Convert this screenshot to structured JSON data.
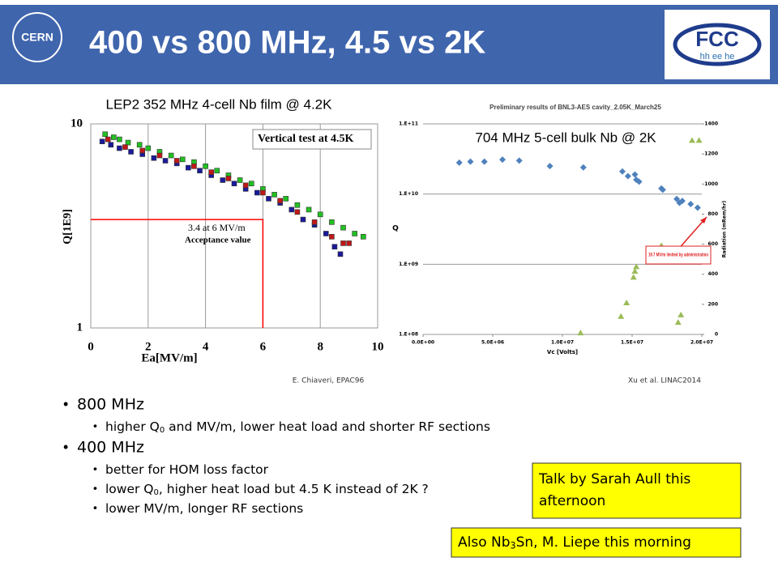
{
  "header": {
    "title": "400 vs 800 MHz, 4.5 vs 2K",
    "left_logo": "CERN",
    "right_logo": "FCC",
    "right_logo_sub": "hh ee he"
  },
  "chart_data": [
    {
      "type": "scatter",
      "title": "LEP2 352 MHz 4-cell Nb film @ 4.2K",
      "xlabel": "Ea[MV/m]",
      "ylabel": "Q[1E9]",
      "xlim": [
        0,
        10
      ],
      "xticks": [
        0,
        2,
        4,
        6,
        8,
        10
      ],
      "ylim": [
        1,
        10
      ],
      "yticks": [
        1,
        10
      ],
      "ylog": true,
      "grid": true,
      "annotations": [
        "Vertical test at 4.5K",
        "3.4 at 6 MV/m",
        "Acceptance value"
      ],
      "acceptance": {
        "x": 6,
        "y": 3.4,
        "color": "#ff0000"
      },
      "credit": "E. Chiaveri, EPAC96",
      "series": [
        {
          "color": "#22c022",
          "marker": "square",
          "x": [
            0.5,
            0.8,
            1.0,
            1.3,
            1.7,
            2.0,
            2.4,
            2.8,
            3.2,
            3.6,
            4.0,
            4.4,
            4.8,
            5.2,
            5.6,
            6.0,
            6.4,
            6.8,
            7.2,
            7.6,
            8.0,
            8.4,
            8.8,
            9.2,
            9.5
          ],
          "values": [
            8.9,
            8.6,
            8.4,
            8.1,
            7.9,
            7.6,
            7.3,
            7.0,
            6.7,
            6.5,
            6.2,
            5.9,
            5.6,
            5.3,
            5.1,
            4.8,
            4.5,
            4.3,
            4.0,
            3.8,
            3.6,
            3.3,
            3.1,
            2.9,
            2.8
          ]
        },
        {
          "color": "#1a1a9a",
          "marker": "square",
          "x": [
            0.4,
            0.7,
            1.0,
            1.4,
            1.8,
            2.2,
            2.6,
            3.0,
            3.4,
            3.8,
            4.2,
            4.6,
            5.0,
            5.4,
            5.8,
            6.2,
            6.6,
            7.0,
            7.4,
            7.8,
            8.2,
            8.5,
            8.7
          ],
          "values": [
            8.2,
            7.9,
            7.6,
            7.3,
            7.1,
            6.8,
            6.6,
            6.4,
            6.1,
            5.9,
            5.6,
            5.3,
            5.1,
            4.8,
            4.6,
            4.3,
            4.1,
            3.8,
            3.4,
            3.2,
            2.9,
            2.5,
            2.3
          ]
        },
        {
          "color": "#c01818",
          "marker": "square",
          "x": [
            0.6,
            1.2,
            1.8,
            2.4,
            3.0,
            3.6,
            4.2,
            4.8,
            5.4,
            6.0,
            6.6,
            7.2,
            7.8,
            8.4,
            8.8,
            9.0
          ],
          "values": [
            8.4,
            7.7,
            7.4,
            7.0,
            6.6,
            6.2,
            5.8,
            5.4,
            5.0,
            4.6,
            4.2,
            3.7,
            3.3,
            2.8,
            2.6,
            2.6
          ]
        }
      ]
    },
    {
      "type": "scatter",
      "title": "Preliminary results of BNL3-AES cavity_2.05K_March25",
      "caption": "704 MHz 5-cell bulk Nb @ 2K",
      "xlabel": "Vc [Volts]",
      "ylabel": "Q",
      "y2label": "Radiation (mRem/hr)",
      "xlim": [
        0,
        20000000
      ],
      "xticks": [
        {
          "value": 0,
          "label": "0.0E+00"
        },
        {
          "value": 5000000,
          "label": "5.0E+06"
        },
        {
          "value": 10000000,
          "label": "1.0E+07"
        },
        {
          "value": 15000000,
          "label": "1.5E+07"
        },
        {
          "value": 20000000,
          "label": "2.0E+07"
        }
      ],
      "ylim": [
        100000000,
        100000000000
      ],
      "ylog": true,
      "grid": true,
      "yticks": [
        {
          "value": 100000000,
          "label": "1.E+08"
        },
        {
          "value": 1000000000,
          "label": "1.E+09"
        },
        {
          "value": 10000000000,
          "label": "1.E+10"
        },
        {
          "value": 100000000000,
          "label": "1.E+11"
        }
      ],
      "y2lim": [
        0,
        1400
      ],
      "y2ticks": [
        0,
        200,
        400,
        600,
        800,
        1000,
        1200,
        1400
      ],
      "annotation": "19.7 MV/m limited by administration",
      "credit": "Xu et al. LINAC2014",
      "series": [
        {
          "color": "#4f81bd",
          "marker": "diamond",
          "x": [
            2600000,
            3400000,
            4400000,
            5700000,
            6900000,
            9100000,
            11500000,
            14300000,
            14700000,
            15200000,
            15300000,
            15500000,
            17100000,
            17200000,
            18200000,
            18400000,
            18600000,
            19200000,
            19700000
          ],
          "values": [
            28000000000,
            29000000000,
            29000000000,
            31000000000,
            30000000000,
            25000000000,
            24000000000,
            21000000000,
            18000000000,
            19000000000,
            16000000000,
            15000000000,
            12000000000,
            11500000000,
            8500000000,
            7500000000,
            8000000000,
            7200000000,
            6400000000
          ]
        },
        {
          "color": "#9bbb59",
          "marker": "triangle",
          "axis": "y2",
          "x": [
            11300000,
            14200000,
            14600000,
            15100000,
            15200000,
            15300000,
            17100000,
            18300000,
            18500000,
            19300000,
            19800000
          ],
          "values": [
            10,
            120,
            210,
            380,
            420,
            450,
            590,
            80,
            130,
            1290,
            1290
          ]
        }
      ]
    }
  ],
  "bullets": [
    {
      "text": "800 MHz",
      "sub": [
        [
          "higher Q",
          "0",
          " and MV/m, lower heat load and shorter RF sections"
        ]
      ]
    },
    {
      "text": "400 MHz",
      "sub": [
        [
          "better for HOM loss factor"
        ],
        [
          "lower Q",
          "0",
          ", higher heat load but 4.5 K instead of 2K ?"
        ],
        [
          "lower MV/m, longer RF sections"
        ]
      ]
    }
  ],
  "notes": [
    {
      "lines": [
        "Talk by Sarah Aull this",
        "afternoon"
      ]
    },
    {
      "lines": [
        [
          "Also Nb",
          "3",
          "Sn, M. Liepe this morning"
        ]
      ]
    }
  ]
}
